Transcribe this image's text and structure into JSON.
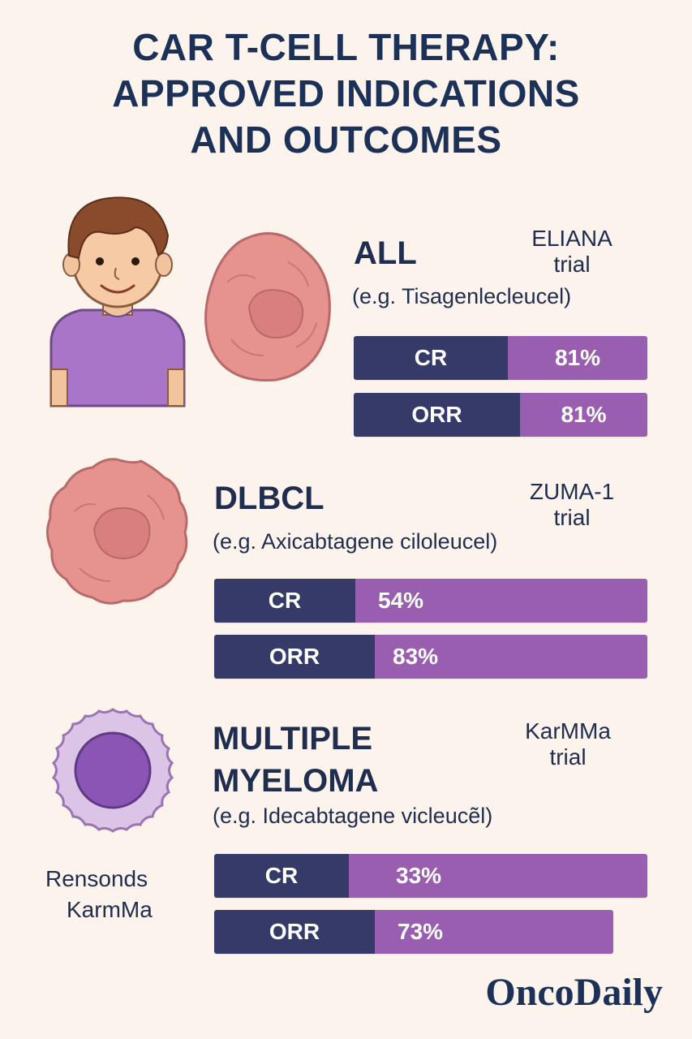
{
  "title": {
    "line1": "CAR T-CELL THERAPY:",
    "line2": "APPROVED INDICATIONS",
    "line3": "AND OUTCOMES"
  },
  "sections": [
    {
      "heading": "ALL",
      "example": "(e.g. Tisagenlecleucel)",
      "trial_line1": "ELIANA",
      "trial_line2": "trial",
      "bars": [
        {
          "label": "CR",
          "value": "81%",
          "percent": 81
        },
        {
          "label": "ORR",
          "value": "81%",
          "percent": 81
        }
      ]
    },
    {
      "heading": "DLBCL",
      "example": "(e.g. Axicabtagene ciloleucel)",
      "trial_line1": "ZUMA-1",
      "trial_line2": "trial",
      "bars": [
        {
          "label": "CR",
          "value": "54%",
          "percent": 54
        },
        {
          "label": "ORR",
          "value": "83%",
          "percent": 83
        }
      ]
    },
    {
      "heading_line1": "MULTIPLE",
      "heading_line2": "MYELOMA",
      "example": "(e.g. Idecabtagene vicleucẽl)",
      "trial_line1": "KarMMa",
      "trial_line2": "trial",
      "bars": [
        {
          "label": "CR",
          "value": "33%",
          "percent": 33
        },
        {
          "label": "ORR",
          "value": "73%",
          "percent": 73
        }
      ]
    }
  ],
  "side_note": {
    "line1": "Rensonds",
    "line2": "KarmMa"
  },
  "logo": "OncoDaily",
  "colors": {
    "background": "#fbf3ec",
    "title": "#1b3158",
    "label_bar": "#353a68",
    "value_bar": "#9a5eb0",
    "tumor": "#e08f8c",
    "myeloma_cell": "#8b55b5"
  },
  "icons": [
    "child-patient-icon",
    "leukemia-cell-icon",
    "lymphoma-cell-icon",
    "myeloma-cell-icon"
  ]
}
